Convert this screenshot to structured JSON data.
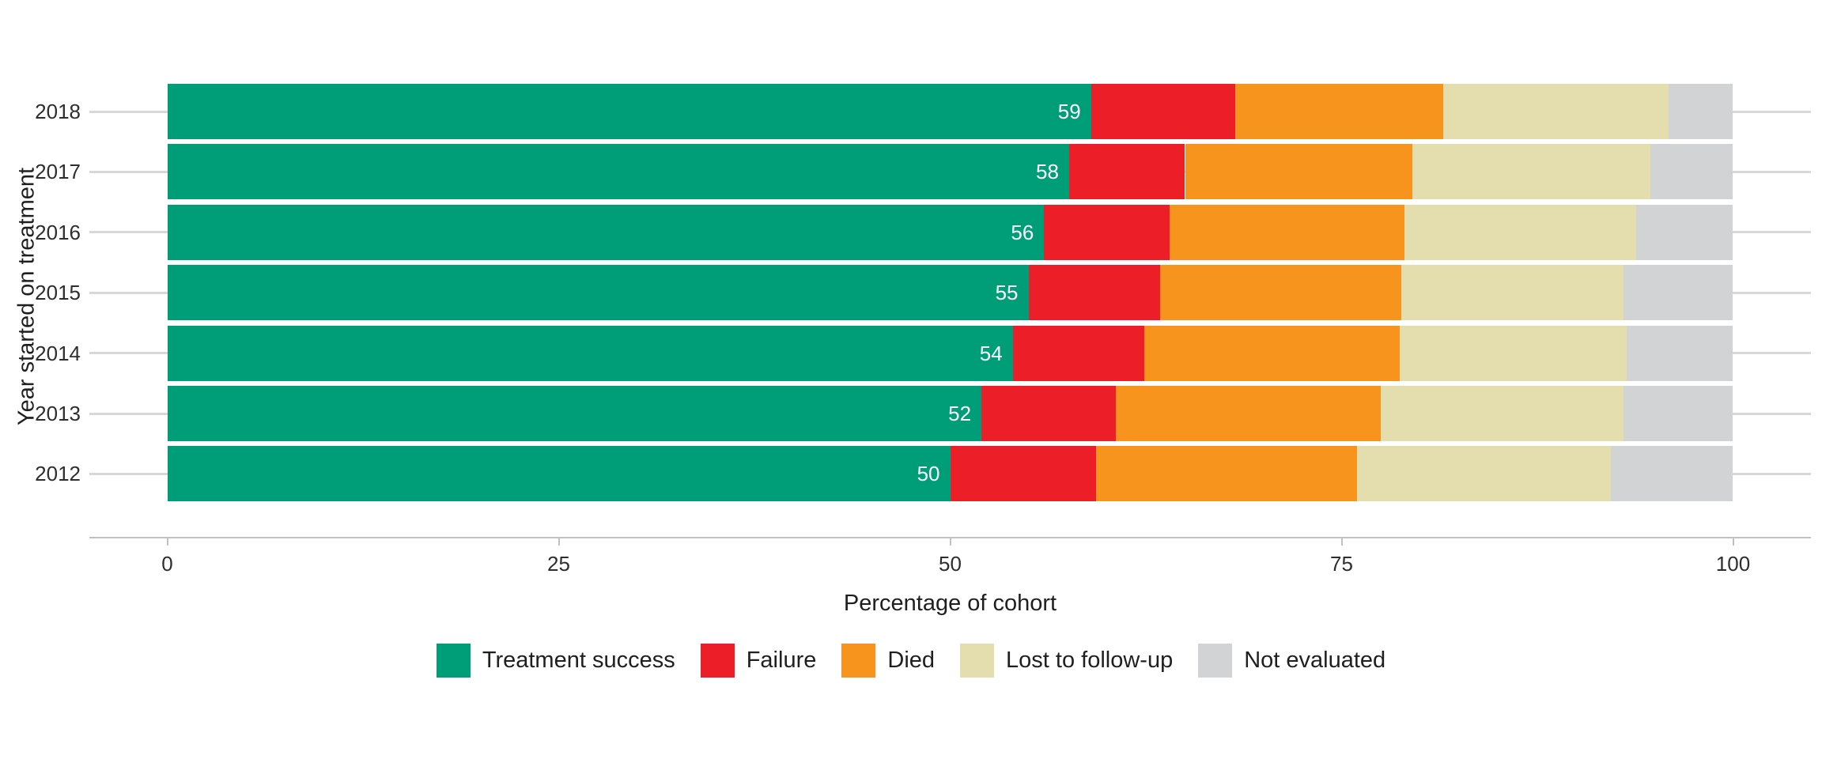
{
  "figure": {
    "background": "#FFFFFF"
  },
  "style": {
    "gridline_color": "#D8D8D8",
    "axis_line_color": "#C1C1C1",
    "tick_text_color": "#2E2E2E",
    "title_text_color": "#1F1F1F",
    "bar_label_color": "#FFFFFF"
  },
  "chart_data": {
    "type": "bar",
    "stacked": true,
    "orientation": "horizontal",
    "title": "",
    "xlabel": "Percentage of cohort",
    "ylabel": "Year started on treatment",
    "xlim": [
      0,
      100
    ],
    "x_ticks": [
      0,
      25,
      50,
      75,
      100
    ],
    "grid": "horizontal category gridlines only",
    "legend_position": "bottom",
    "categories": [
      "2018",
      "2017",
      "2016",
      "2015",
      "2014",
      "2013",
      "2012"
    ],
    "series": [
      {
        "name": "Treatment success",
        "color": "#009E78",
        "values": [
          59,
          57.6,
          56,
          55,
          54,
          52,
          50
        ],
        "bar_labels": [
          "59",
          "58",
          "56",
          "55",
          "54",
          "52",
          "50"
        ],
        "bar_label_color": "#FFFFFF"
      },
      {
        "name": "Failure",
        "color": "#EC1E27",
        "values": [
          9.2,
          7.4,
          8.0,
          8.4,
          8.4,
          8.6,
          9.3
        ]
      },
      {
        "name": "Died",
        "color": "#F7941E",
        "values": [
          13.3,
          14.5,
          15.0,
          15.4,
          16.3,
          16.9,
          16.7
        ]
      },
      {
        "name": "Lost to follow-up",
        "color": "#E4DDAD",
        "values": [
          14.4,
          15.2,
          14.8,
          14.2,
          14.5,
          15.5,
          16.2
        ]
      },
      {
        "name": "Not evaluated",
        "color": "#D1D3D4",
        "values": [
          4.1,
          5.3,
          6.2,
          7.0,
          6.8,
          7.0,
          7.8
        ]
      }
    ]
  }
}
